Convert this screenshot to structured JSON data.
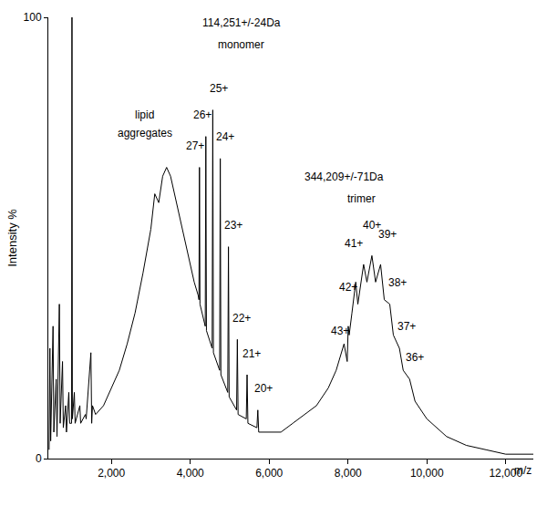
{
  "chart_data": {
    "type": "line",
    "color": "#000000",
    "x_label": "m/z",
    "y_label": "Intensity %",
    "x": [
      420,
      440,
      460,
      520,
      540,
      600,
      620,
      680,
      700,
      760,
      780,
      840,
      860,
      920,
      940,
      990,
      1000,
      1010,
      1060,
      1080,
      1200,
      1220,
      1340,
      1360,
      1480,
      1500,
      1520,
      1600,
      1800,
      2000,
      2200,
      2400,
      2600,
      2800,
      3000,
      3100,
      3200,
      3300,
      3400,
      3500,
      3600,
      3800,
      3900,
      4000,
      4100,
      4200,
      4220,
      4233,
      4246,
      4380,
      4395,
      4410,
      4555,
      4571,
      4587,
      4745,
      4761,
      4777,
      4950,
      4968,
      4986,
      5175,
      5194,
      5213,
      5420,
      5441,
      5462,
      5690,
      5713,
      5736,
      6000,
      6300,
      6600,
      6900,
      7200,
      7500,
      7700,
      7900,
      7980,
      8006,
      8030,
      8100,
      8196,
      8250,
      8300,
      8396,
      8480,
      8606,
      8700,
      8827,
      8920,
      9059,
      9150,
      9304,
      9400,
      9562,
      9700,
      10000,
      10500,
      11000,
      11500,
      12000,
      12700
    ],
    "values": [
      2,
      25,
      4,
      30,
      6,
      18,
      5,
      35,
      8,
      22,
      7,
      12,
      6,
      15,
      8,
      8,
      100,
      9,
      15,
      8,
      12,
      8,
      10,
      9,
      24,
      8,
      12,
      10,
      12,
      16,
      20,
      26,
      33,
      42,
      52,
      60,
      58,
      64,
      66,
      64,
      60,
      52,
      48,
      44,
      40,
      37,
      36,
      66,
      35,
      30,
      73,
      29,
      25,
      79,
      24,
      20,
      68,
      19,
      15,
      48,
      14,
      11,
      27,
      10,
      9,
      19,
      8,
      7,
      11,
      6,
      6,
      6,
      8,
      10,
      12,
      16,
      20,
      26,
      22,
      30,
      28,
      33,
      40,
      35,
      38,
      44,
      40,
      46,
      40,
      44,
      36,
      35,
      28,
      25,
      20,
      18,
      13,
      9,
      5,
      3,
      2,
      1,
      1
    ],
    "xlim": [
      400,
      12700
    ],
    "ylim": [
      0,
      100
    ],
    "xticks": [
      {
        "value": 2000,
        "label": "2,000"
      },
      {
        "value": 4000,
        "label": "4,000"
      },
      {
        "value": 6000,
        "label": "6,000"
      },
      {
        "value": 8000,
        "label": "8,000"
      },
      {
        "value": 10000,
        "label": "10,000"
      },
      {
        "value": 12000,
        "label": "12,000"
      }
    ],
    "yticks": [
      0,
      100
    ],
    "grid": false,
    "annotations": [
      {
        "text": "114,251+/-24Da",
        "x": 5300,
        "y": 97
      },
      {
        "text": "monomer",
        "x": 5300,
        "y": 92
      },
      {
        "text": "lipid",
        "x": 2850,
        "y": 76
      },
      {
        "text": "aggregates",
        "x": 2850,
        "y": 72
      },
      {
        "text": "27+",
        "x": 4120,
        "y": 69
      },
      {
        "text": "26+",
        "x": 4300,
        "y": 76
      },
      {
        "text": "25+",
        "x": 4720,
        "y": 82
      },
      {
        "text": "24+",
        "x": 4880,
        "y": 71
      },
      {
        "text": "23+",
        "x": 5100,
        "y": 51
      },
      {
        "text": "22+",
        "x": 5300,
        "y": 30
      },
      {
        "text": "21+",
        "x": 5560,
        "y": 22
      },
      {
        "text": "20+",
        "x": 5850,
        "y": 14
      },
      {
        "text": "344,209+/-71Da",
        "x": 7900,
        "y": 62
      },
      {
        "text": "trimer",
        "x": 8350,
        "y": 57
      },
      {
        "text": "43+",
        "x": 7800,
        "y": 27
      },
      {
        "text": "42+",
        "x": 8000,
        "y": 37
      },
      {
        "text": "41+",
        "x": 8150,
        "y": 47
      },
      {
        "text": "40+",
        "x": 8606,
        "y": 51
      },
      {
        "text": "39+",
        "x": 9000,
        "y": 49
      },
      {
        "text": "38+",
        "x": 9250,
        "y": 38
      },
      {
        "text": "37+",
        "x": 9480,
        "y": 28
      },
      {
        "text": "36+",
        "x": 9700,
        "y": 21
      }
    ]
  }
}
